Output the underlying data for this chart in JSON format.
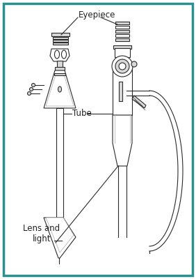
{
  "background_color": "#ffffff",
  "border_color": "#2a9090",
  "border_linewidth": 2.5,
  "line_color": "#2a2a2a",
  "gray_fill": "#d8d8d8",
  "white_fill": "#ffffff",
  "labels": {
    "eyepiece": "Eyepiece",
    "tube": "Tube",
    "lens_light": "Lens and\nlight"
  },
  "label_fontsize": 8.5,
  "label_color": "#222222"
}
